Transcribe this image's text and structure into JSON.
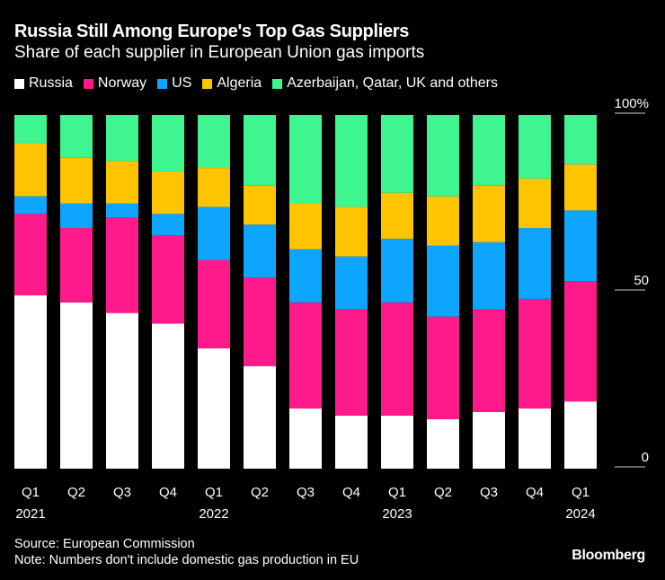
{
  "chart_data": {
    "type": "bar",
    "stacked": true,
    "title": "Russia Still Among Europe's Top Gas Suppliers",
    "subtitle": "Share of each supplier in European Union gas imports",
    "categories": [
      "Q1 2021",
      "Q2 2021",
      "Q3 2021",
      "Q4 2021",
      "Q1 2022",
      "Q2 2022",
      "Q3 2022",
      "Q4 2022",
      "Q1 2023",
      "Q2 2023",
      "Q3 2023",
      "Q4 2023",
      "Q1 2024"
    ],
    "tick_labels": [
      [
        "Q1",
        "2021"
      ],
      [
        "Q2",
        ""
      ],
      [
        "Q3",
        ""
      ],
      [
        "Q4",
        ""
      ],
      [
        "Q1",
        "2022"
      ],
      [
        "Q2",
        ""
      ],
      [
        "Q3",
        ""
      ],
      [
        "Q4",
        ""
      ],
      [
        "Q1",
        "2023"
      ],
      [
        "Q2",
        ""
      ],
      [
        "Q3",
        ""
      ],
      [
        "Q4",
        ""
      ],
      [
        "Q1",
        "2024"
      ]
    ],
    "series": [
      {
        "name": "Russia",
        "color": "#ffffff",
        "values": [
          49,
          47,
          44,
          41,
          34,
          29,
          17,
          15,
          15,
          14,
          16,
          17,
          19
        ]
      },
      {
        "name": "Norway",
        "color": "#ff1a8c",
        "values": [
          23,
          21,
          27,
          25,
          25,
          25,
          30,
          30,
          32,
          29,
          29,
          31,
          34
        ]
      },
      {
        "name": "US",
        "color": "#0ea5ff",
        "values": [
          5,
          7,
          4,
          6,
          15,
          15,
          15,
          15,
          18,
          20,
          19,
          20,
          20
        ]
      },
      {
        "name": "Algeria",
        "color": "#ffc400",
        "values": [
          15,
          13,
          12,
          12,
          11,
          11,
          13,
          14,
          13,
          14,
          16,
          14,
          13
        ]
      },
      {
        "name": "Azerbaijan, Qatar, UK and others",
        "color": "#3ef58f",
        "values": [
          8,
          12,
          13,
          16,
          15,
          20,
          25,
          26,
          22,
          23,
          20,
          18,
          14
        ]
      }
    ],
    "yticks": [
      {
        "value": 100,
        "label": "100%"
      },
      {
        "value": 50,
        "label": "50"
      },
      {
        "value": 0,
        "label": "0"
      }
    ],
    "ylim": [
      0,
      100
    ],
    "legend_position": "top-left",
    "grid": false
  },
  "source": "Source: European Commission",
  "note": "Note: Numbers don't include domestic gas production in EU",
  "brand": "Bloomberg"
}
